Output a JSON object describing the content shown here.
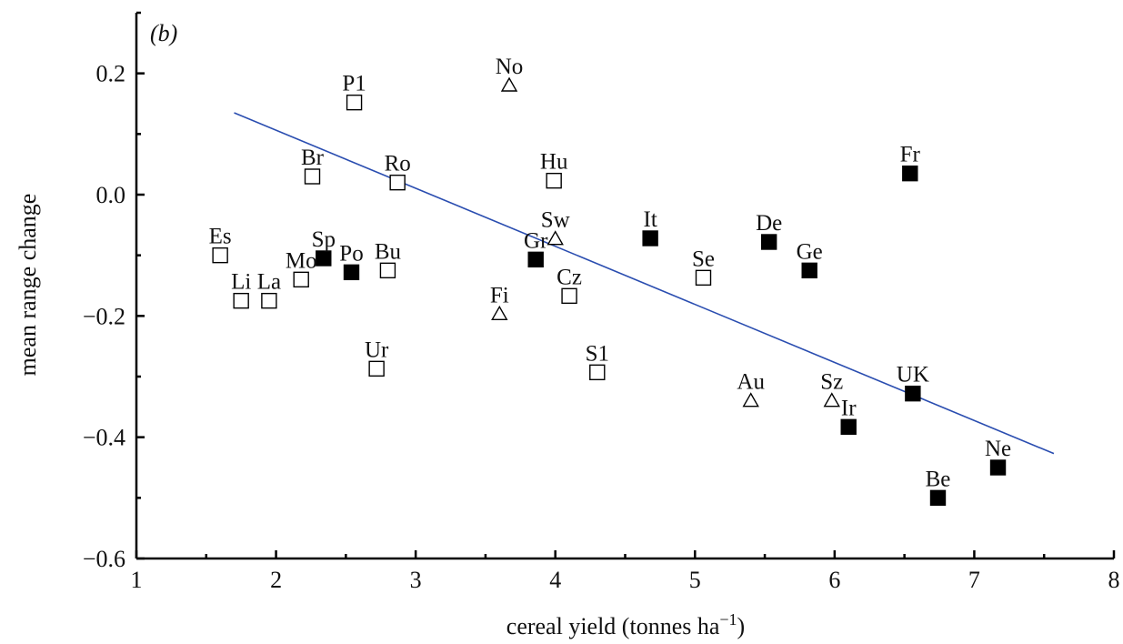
{
  "chart_data": {
    "type": "scatter",
    "panel_label": "(b)",
    "xlabel": "cereal yield (tonnes ha",
    "xlabel_superscript": "−1",
    "xlabel_close": ")",
    "ylabel": "mean range change",
    "xlim": [
      1,
      8
    ],
    "ylim": [
      -0.6,
      0.3
    ],
    "x_ticks": [
      1,
      2,
      3,
      4,
      5,
      6,
      7,
      8
    ],
    "x_tick_labels": [
      "1",
      "2",
      "3",
      "4",
      "5",
      "6",
      "7",
      "8"
    ],
    "y_ticks": [
      -0.6,
      -0.4,
      -0.2,
      0.0,
      0.2
    ],
    "y_tick_labels": [
      "−0.6",
      "−0.4",
      "−0.2",
      "0.0",
      "0.2"
    ],
    "marker_types": {
      "open_square": "#ffffff",
      "filled_square": "#000000",
      "open_triangle": "#ffffff"
    },
    "points": [
      {
        "label": "Es",
        "x": 1.6,
        "y": -0.1,
        "marker": "open_square"
      },
      {
        "label": "Li",
        "x": 1.75,
        "y": -0.175,
        "marker": "open_square"
      },
      {
        "label": "La",
        "x": 1.95,
        "y": -0.175,
        "marker": "open_square"
      },
      {
        "label": "Mo",
        "x": 2.18,
        "y": -0.14,
        "marker": "open_square"
      },
      {
        "label": "Br",
        "x": 2.26,
        "y": 0.03,
        "marker": "open_square"
      },
      {
        "label": "Sp",
        "x": 2.34,
        "y": -0.105,
        "marker": "filled_square"
      },
      {
        "label": "Po",
        "x": 2.54,
        "y": -0.128,
        "marker": "filled_square"
      },
      {
        "label": "P1",
        "x": 2.56,
        "y": 0.152,
        "marker": "open_square"
      },
      {
        "label": "Ur",
        "x": 2.72,
        "y": -0.287,
        "marker": "open_square"
      },
      {
        "label": "Bu",
        "x": 2.8,
        "y": -0.125,
        "marker": "open_square"
      },
      {
        "label": "Ro",
        "x": 2.87,
        "y": 0.02,
        "marker": "open_square"
      },
      {
        "label": "Fi",
        "x": 3.6,
        "y": -0.197,
        "marker": "open_triangle"
      },
      {
        "label": "No",
        "x": 3.67,
        "y": 0.18,
        "marker": "open_triangle"
      },
      {
        "label": "Gr",
        "x": 3.86,
        "y": -0.107,
        "marker": "filled_square"
      },
      {
        "label": "Hu",
        "x": 3.99,
        "y": 0.023,
        "marker": "open_square"
      },
      {
        "label": "Sw",
        "x": 4.0,
        "y": -0.073,
        "marker": "open_triangle"
      },
      {
        "label": "Cz",
        "x": 4.1,
        "y": -0.167,
        "marker": "open_square"
      },
      {
        "label": "S1",
        "x": 4.3,
        "y": -0.293,
        "marker": "open_square"
      },
      {
        "label": "It",
        "x": 4.68,
        "y": -0.072,
        "marker": "filled_square"
      },
      {
        "label": "Se",
        "x": 5.06,
        "y": -0.137,
        "marker": "open_square"
      },
      {
        "label": "Au",
        "x": 5.4,
        "y": -0.34,
        "marker": "open_triangle"
      },
      {
        "label": "De",
        "x": 5.53,
        "y": -0.078,
        "marker": "filled_square"
      },
      {
        "label": "Ge",
        "x": 5.82,
        "y": -0.125,
        "marker": "filled_square"
      },
      {
        "label": "Sz",
        "x": 5.98,
        "y": -0.34,
        "marker": "open_triangle"
      },
      {
        "label": "Ir",
        "x": 6.1,
        "y": -0.383,
        "marker": "filled_square"
      },
      {
        "label": "Fr",
        "x": 6.54,
        "y": 0.035,
        "marker": "filled_square"
      },
      {
        "label": "UK",
        "x": 6.56,
        "y": -0.328,
        "marker": "filled_square"
      },
      {
        "label": "Be",
        "x": 6.74,
        "y": -0.5,
        "marker": "filled_square"
      },
      {
        "label": "Ne",
        "x": 7.17,
        "y": -0.45,
        "marker": "filled_square"
      }
    ],
    "trendline": {
      "x": [
        1.7,
        7.57
      ],
      "y": [
        0.135,
        -0.427
      ],
      "color": "#2a4db0"
    },
    "grid": false,
    "legend": "none"
  }
}
